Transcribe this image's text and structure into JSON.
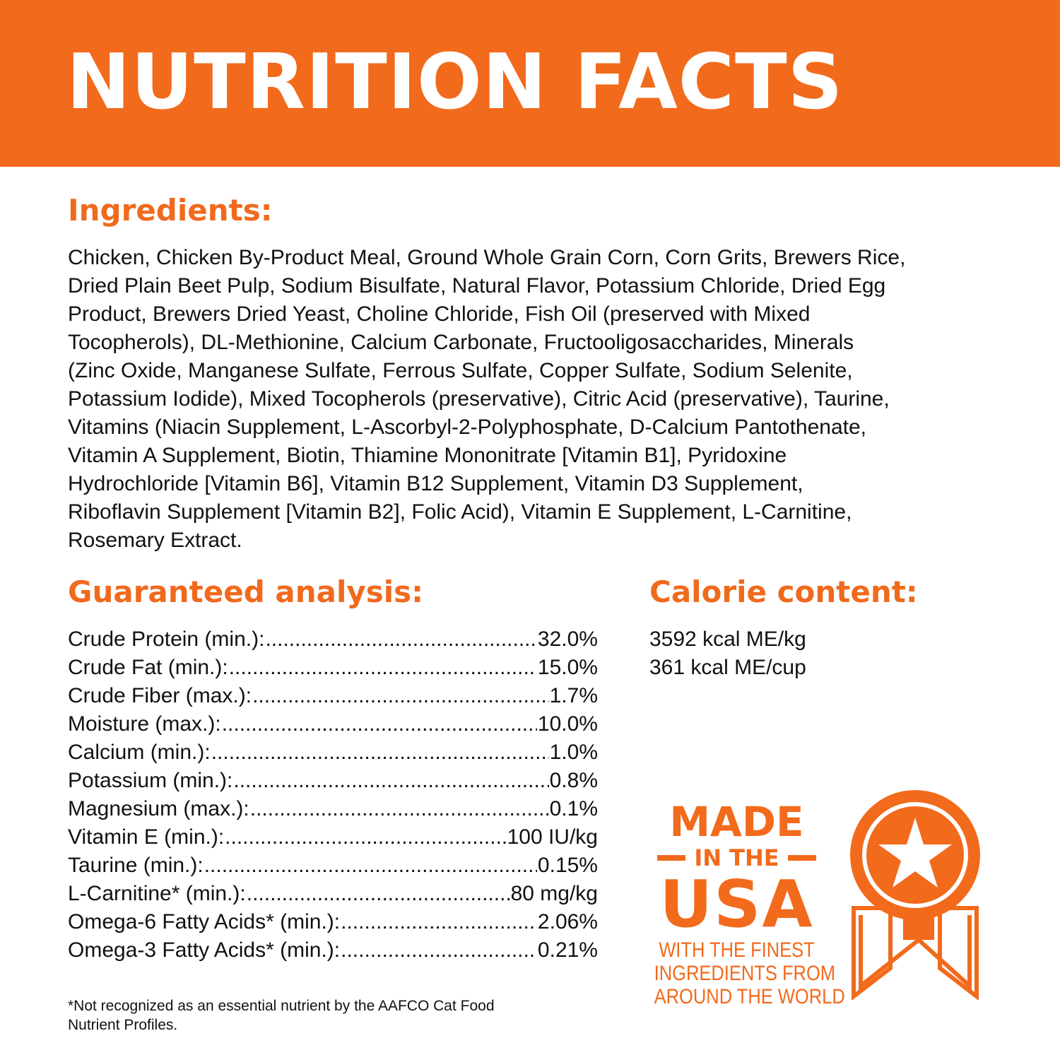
{
  "title": "NUTRITION FACTS",
  "ingredients": {
    "heading": "Ingredients:",
    "lines": [
      "Chicken, Chicken By-Product Meal, Ground Whole Grain Corn, Corn Grits, Brewers Rice,",
      "Dried Plain Beet Pulp, Sodium Bisulfate, Natural Flavor, Potassium Chloride, Dried Egg",
      "Product, Brewers Dried Yeast, Choline Chloride, Fish Oil (preserved with Mixed",
      "Tocopherols), DL-Methionine, Calcium Carbonate, Fructooligosaccharides, Minerals",
      "(Zinc Oxide, Manganese Sulfate, Ferrous Sulfate, Copper Sulfate, Sodium Selenite,",
      "Potassium Iodide), Mixed Tocopherols (preservative), Citric Acid (preservative), Taurine,",
      "Vitamins (Niacin Supplement, L-Ascorbyl-2-Polyphosphate, D-Calcium Pantothenate,",
      "Vitamin A Supplement, Biotin, Thiamine Mononitrate [Vitamin B1], Pyridoxine",
      "Hydrochloride [Vitamin B6], Vitamin B12 Supplement, Vitamin D3 Supplement,",
      "Riboflavin Supplement [Vitamin B2], Folic Acid), Vitamin E Supplement, L-Carnitine,",
      "Rosemary Extract."
    ]
  },
  "analysis": {
    "heading": "Guaranteed analysis:",
    "rows": [
      {
        "label": "Crude Protein (min.):",
        "value": "32.0%"
      },
      {
        "label": "Crude Fat (min.):",
        "value": "15.0%"
      },
      {
        "label": "Crude Fiber (max.):",
        "value": "1.7%"
      },
      {
        "label": "Moisture (max.):",
        "value": "10.0%"
      },
      {
        "label": "Calcium (min.):",
        "value": "1.0%"
      },
      {
        "label": "Potassium (min.):",
        "value": "0.8%"
      },
      {
        "label": "Magnesium (max.):",
        "value": "0.1%"
      },
      {
        "label": "Vitamin E (min.):",
        "value": "100 IU/kg"
      },
      {
        "label": "Taurine (min.):",
        "value": "0.15%"
      },
      {
        "label": "L-Carnitine* (min.):",
        "value": "80 mg/kg"
      },
      {
        "label": "Omega-6 Fatty Acids* (min.):",
        "value": "2.06%"
      },
      {
        "label": "Omega-3 Fatty Acids* (min.):",
        "value": "0.21%"
      }
    ],
    "footnote_lines": [
      "*Not recognized as an essential nutrient by the AAFCO Cat Food",
      "Nutrient Profiles."
    ]
  },
  "calorie": {
    "heading": "Calorie content:",
    "lines": [
      "3592 kcal ME/kg",
      "361 kcal ME/cup"
    ]
  },
  "badge": {
    "made": "MADE",
    "in_the": "IN THE",
    "usa": "USA",
    "tagline": [
      "WITH THE FINEST",
      "INGREDIENTS FROM",
      "AROUND THE WORLD"
    ],
    "icon": "award-ribbon-star-icon"
  },
  "colors": {
    "accent": "#f26a1b",
    "text": "#111111",
    "background": "#ffffff"
  }
}
